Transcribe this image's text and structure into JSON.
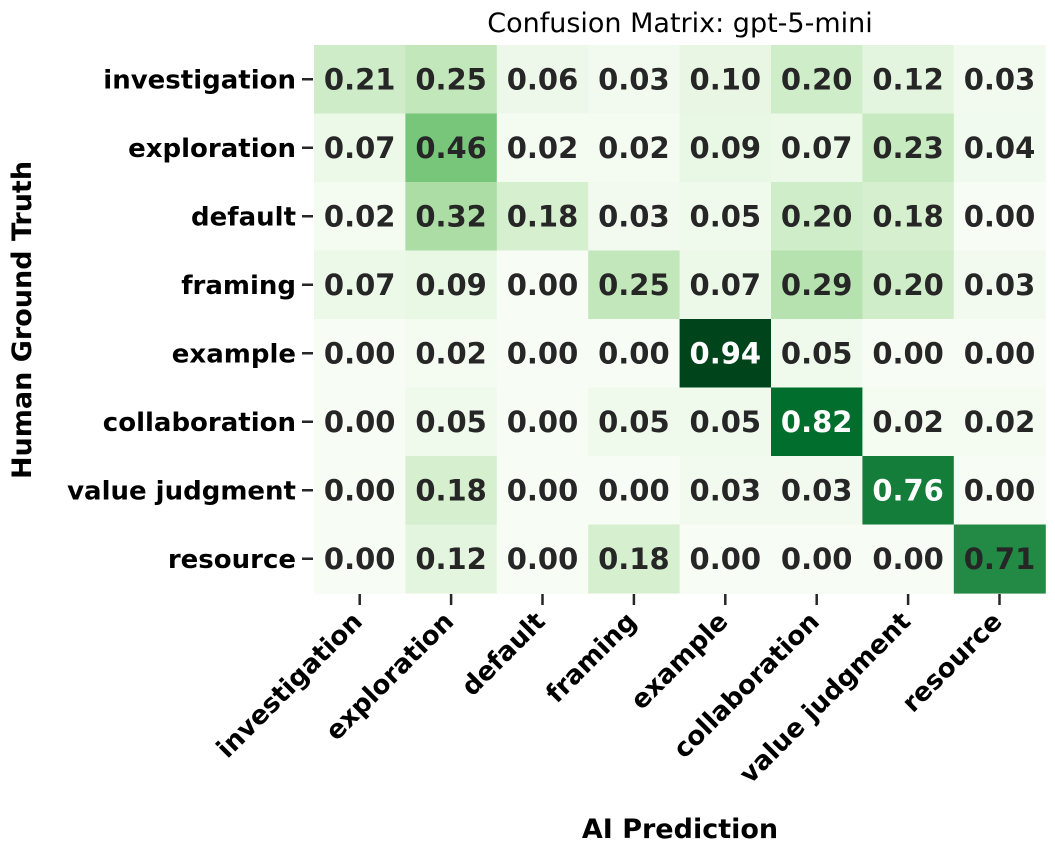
{
  "chart_data": {
    "type": "heatmap",
    "title": "Confusion Matrix: gpt-5-mini",
    "xlabel": "AI Prediction",
    "ylabel": "Human Ground Truth",
    "x_categories": [
      "investigation",
      "exploration",
      "default",
      "framing",
      "example",
      "collaboration",
      "value judgment",
      "resource"
    ],
    "y_categories": [
      "investigation",
      "exploration",
      "default",
      "framing",
      "example",
      "collaboration",
      "value judgment",
      "resource"
    ],
    "values": [
      [
        0.21,
        0.25,
        0.06,
        0.03,
        0.1,
        0.2,
        0.12,
        0.03
      ],
      [
        0.07,
        0.46,
        0.02,
        0.02,
        0.09,
        0.07,
        0.23,
        0.04
      ],
      [
        0.02,
        0.32,
        0.18,
        0.03,
        0.05,
        0.2,
        0.18,
        0.0
      ],
      [
        0.07,
        0.09,
        0.0,
        0.25,
        0.07,
        0.29,
        0.2,
        0.03
      ],
      [
        0.0,
        0.02,
        0.0,
        0.0,
        0.94,
        0.05,
        0.0,
        0.0
      ],
      [
        0.0,
        0.05,
        0.0,
        0.05,
        0.05,
        0.82,
        0.02,
        0.02
      ],
      [
        0.0,
        0.18,
        0.0,
        0.0,
        0.03,
        0.03,
        0.76,
        0.0
      ],
      [
        0.0,
        0.12,
        0.0,
        0.18,
        0.0,
        0.0,
        0.0,
        0.71
      ]
    ],
    "value_range": [
      0,
      0.94
    ],
    "colormap": "Greens",
    "colors": {
      "low": "#f7fcf5",
      "high": "#00441b"
    },
    "colorbar": false,
    "grid": false
  }
}
